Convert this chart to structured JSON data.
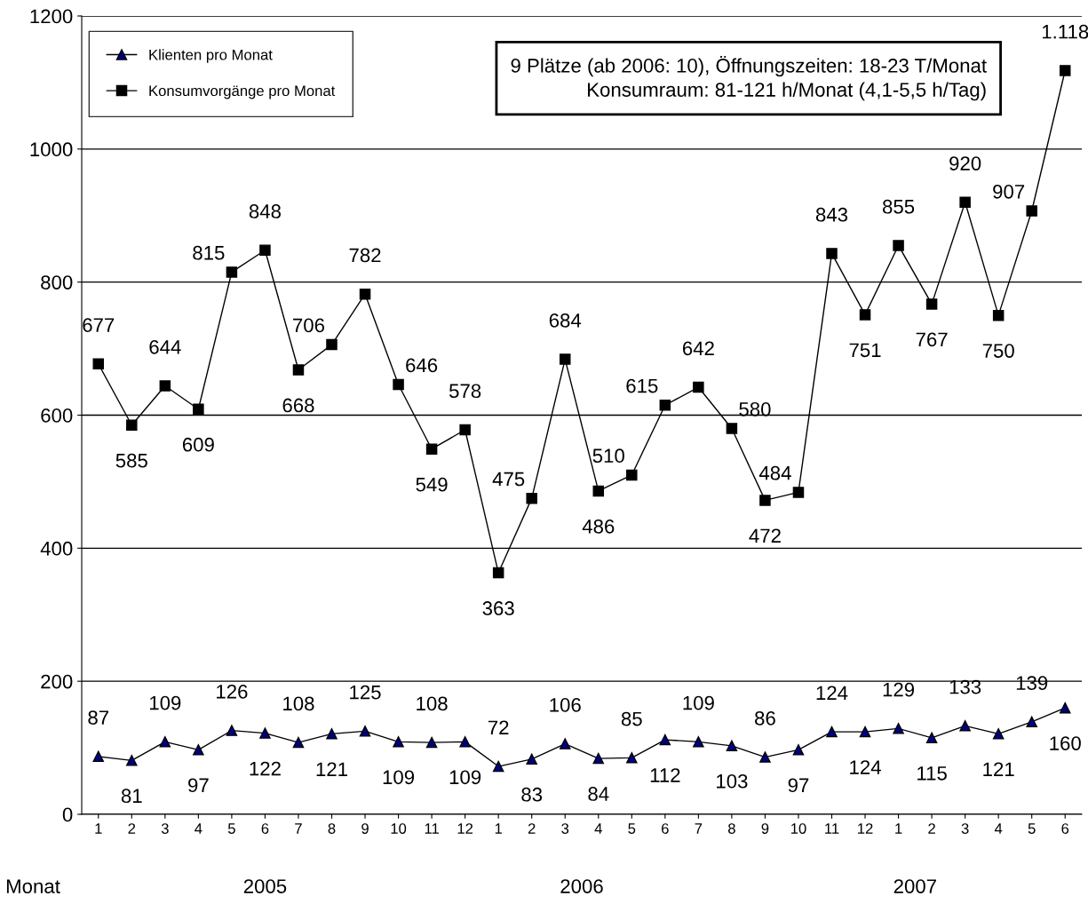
{
  "chart_data": {
    "type": "line",
    "categories": [
      "1",
      "2",
      "3",
      "4",
      "5",
      "6",
      "7",
      "8",
      "9",
      "10",
      "11",
      "12",
      "1",
      "2",
      "3",
      "4",
      "5",
      "6",
      "7",
      "8",
      "9",
      "10",
      "11",
      "12",
      "1",
      "2",
      "3",
      "4",
      "5",
      "6"
    ],
    "series": [
      {
        "name": "Klienten pro Monat",
        "color": "#000080",
        "marker": "triangle",
        "values": [
          87,
          81,
          109,
          97,
          126,
          122,
          108,
          121,
          125,
          109,
          108,
          109,
          72,
          83,
          106,
          84,
          85,
          112,
          109,
          103,
          86,
          97,
          124,
          124,
          129,
          115,
          133,
          121,
          139,
          160
        ],
        "value_labels": [
          "87",
          "81",
          "109",
          "97",
          "126",
          "122",
          "108",
          "121",
          "125",
          "109",
          "108",
          "109",
          "72",
          "83",
          "106",
          "84",
          "85",
          "112",
          "109",
          "103",
          "86",
          "97",
          "124",
          "124",
          "129",
          "115",
          "133",
          "121",
          "139",
          "160"
        ]
      },
      {
        "name": "Konsumvorgänge pro Monat",
        "color": "#000000",
        "marker": "square",
        "values": [
          677,
          585,
          644,
          609,
          815,
          848,
          668,
          706,
          782,
          646,
          549,
          578,
          363,
          475,
          684,
          486,
          510,
          615,
          642,
          580,
          472,
          484,
          843,
          751,
          855,
          767,
          920,
          750,
          907,
          1118
        ],
        "value_labels": [
          "677",
          "585",
          "644",
          "609",
          "815",
          "848",
          "668",
          "706",
          "782",
          "646",
          "549",
          "578",
          "363",
          "475",
          "684",
          "486",
          "510",
          "615",
          "642",
          "580",
          "472",
          "484",
          "843",
          "751",
          "855",
          "767",
          "920",
          "750",
          "907",
          "1.118"
        ]
      }
    ],
    "ylim": [
      0,
      1200
    ],
    "yticks": [
      0,
      200,
      400,
      600,
      800,
      1000,
      1200
    ],
    "grid": "y",
    "legend": "top left",
    "annotations": [
      "9 Plätze (ab 2006: 10), Öffnungszeiten: 18-23 T/Monat\nKonsumraum: 81-121 h/Monat (4,1-5,5 h/Tag)",
      "Monat",
      "2005",
      "2006",
      "2007"
    ]
  }
}
